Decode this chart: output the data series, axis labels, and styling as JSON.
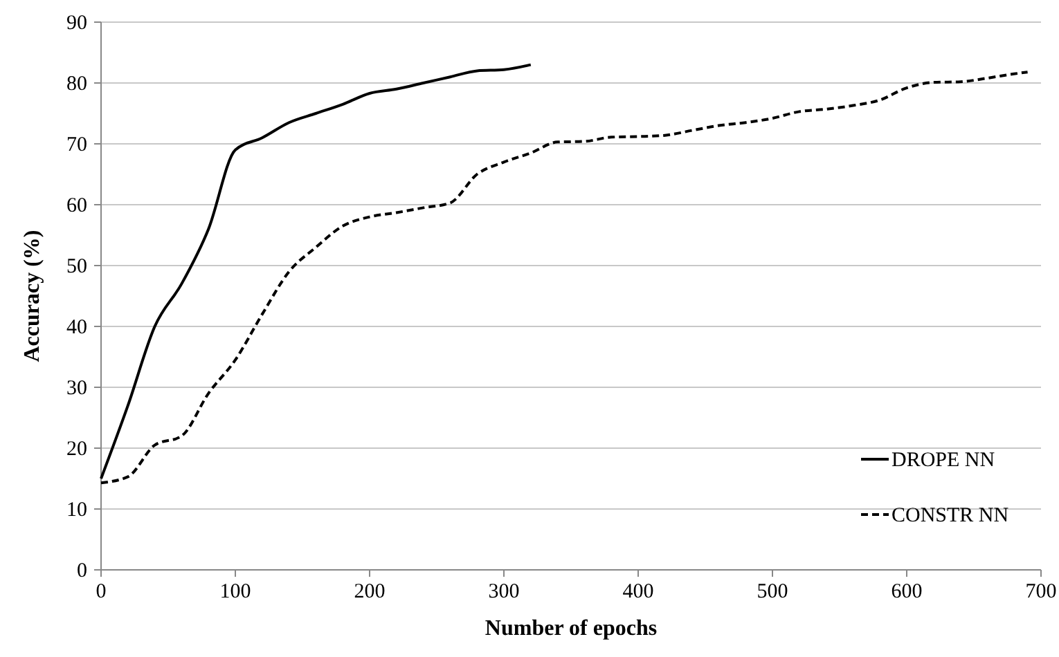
{
  "chart_data": {
    "type": "line",
    "xlabel": "Number of epochs",
    "ylabel": "Accuracy (%)",
    "xlim": [
      0,
      700
    ],
    "xticks": [
      0,
      100,
      200,
      300,
      400,
      500,
      600,
      700
    ],
    "ylim": [
      0,
      90
    ],
    "yticks": [
      0,
      10,
      20,
      30,
      40,
      50,
      60,
      70,
      80,
      90
    ],
    "grid": "y",
    "legend": "bottom right",
    "series": [
      {
        "name": "DROPE NN",
        "color": "#000000",
        "line_style": "solid",
        "x": [
          0,
          20,
          40,
          60,
          80,
          100,
          120,
          140,
          160,
          180,
          200,
          220,
          240,
          260,
          280,
          300,
          320
        ],
        "values": [
          15,
          27,
          40,
          47,
          56,
          69,
          71,
          73.5,
          75,
          76.5,
          78.3,
          79,
          80,
          81,
          82,
          82.2,
          83
        ]
      },
      {
        "name": "CONSTR NN",
        "color": "#000000",
        "line_style": "dashed",
        "x": [
          0,
          20,
          40,
          60,
          80,
          100,
          120,
          140,
          160,
          180,
          200,
          220,
          240,
          260,
          280,
          300,
          320,
          340,
          360,
          380,
          400,
          420,
          440,
          460,
          480,
          500,
          520,
          540,
          560,
          580,
          600,
          620,
          640,
          660,
          680,
          690
        ],
        "values": [
          14.3,
          15.3,
          20.5,
          22,
          29,
          34.5,
          42,
          49,
          53,
          56.5,
          58,
          58.7,
          59.5,
          60.3,
          65,
          67,
          68.5,
          70.3,
          70.4,
          71.1,
          71.2,
          71.4,
          72.2,
          73,
          73.5,
          74.2,
          75.3,
          75.7,
          76.3,
          77.2,
          79.2,
          80.1,
          80.2,
          80.8,
          81.5,
          81.8
        ]
      }
    ]
  }
}
